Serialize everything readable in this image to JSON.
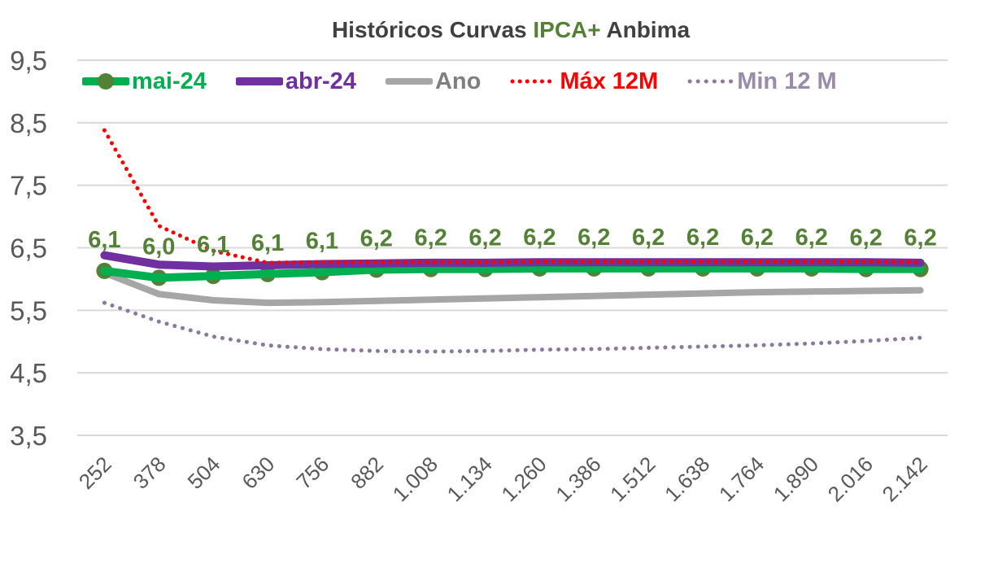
{
  "window": {
    "background": "#FFFFFF"
  },
  "title": {
    "part1": "Históricos Curvas ",
    "highlight": "IPCA+",
    "part2": " Anbima",
    "text_color": "#404040",
    "highlight_color": "#538135"
  },
  "chart_data": {
    "type": "line",
    "title": "Históricos Curvas IPCA+ Anbima",
    "categories": [
      "252",
      "378",
      "504",
      "630",
      "756",
      "882",
      "1.008",
      "1.134",
      "1.260",
      "1.386",
      "1.512",
      "1.638",
      "1.764",
      "1.890",
      "2.016",
      "2.142"
    ],
    "xlabel": "",
    "ylabel": "",
    "ylim": [
      3.5,
      9.5
    ],
    "yticks": [
      "9,5",
      "8,5",
      "7,5",
      "6,5",
      "5,5",
      "4,5",
      "3,5"
    ],
    "grid": true,
    "gridline_color": "#D9D9D9",
    "axis_text_color": "#595959",
    "legend_position": "top",
    "series": [
      {
        "name": "mai-24",
        "color": "#00B050",
        "marker_color": "#538135",
        "label_color": "#538135",
        "line_style": "solid",
        "has_markers": true,
        "values": [
          6.13,
          6.02,
          6.05,
          6.08,
          6.11,
          6.15,
          6.16,
          6.16,
          6.17,
          6.17,
          6.17,
          6.17,
          6.17,
          6.17,
          6.16,
          6.16
        ],
        "labels": [
          "6,1",
          "6,0",
          "6,1",
          "6,1",
          "6,1",
          "6,2",
          "6,2",
          "6,2",
          "6,2",
          "6,2",
          "6,2",
          "6,2",
          "6,2",
          "6,2",
          "6,2",
          "6,2"
        ]
      },
      {
        "name": "abr-24",
        "color": "#7030A0",
        "line_style": "solid",
        "values": [
          6.38,
          6.23,
          6.2,
          6.22,
          6.24,
          6.25,
          6.26,
          6.26,
          6.27,
          6.27,
          6.27,
          6.27,
          6.27,
          6.27,
          6.27,
          6.26
        ]
      },
      {
        "name": "Ano",
        "color": "#A6A6A6",
        "legend_text_color": "#7F7F7F",
        "line_style": "solid",
        "values": [
          6.1,
          5.76,
          5.66,
          5.62,
          5.63,
          5.65,
          5.67,
          5.69,
          5.71,
          5.73,
          5.75,
          5.77,
          5.79,
          5.8,
          5.81,
          5.82
        ]
      },
      {
        "name": "Máx 12M",
        "color": "#FF0000",
        "line_style": "dotted",
        "values": [
          8.38,
          6.85,
          6.45,
          6.26,
          6.27,
          6.27,
          6.27,
          6.27,
          6.28,
          6.28,
          6.28,
          6.28,
          6.28,
          6.28,
          6.28,
          6.27
        ]
      },
      {
        "name": "Min 12 M",
        "color": "#8B7A9B",
        "legend_text_color": "#9A8BAC",
        "line_style": "dotted",
        "values": [
          5.62,
          5.32,
          5.08,
          4.94,
          4.88,
          4.85,
          4.84,
          4.85,
          4.87,
          4.88,
          4.9,
          4.92,
          4.94,
          4.97,
          5.01,
          5.06
        ]
      }
    ]
  }
}
